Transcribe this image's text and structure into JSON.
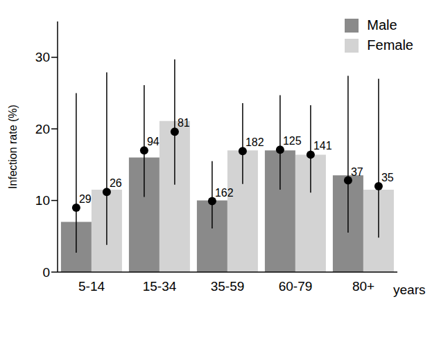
{
  "chart_data": {
    "type": "bar",
    "x_label": "years",
    "y_label": "Infection rate (%)",
    "categories": [
      "5-14",
      "15-34",
      "35-59",
      "60-79",
      "80+"
    ],
    "ylim": [
      0,
      35
    ],
    "yticks": [
      0,
      10,
      20,
      30
    ],
    "legend": "upper right",
    "series": [
      {
        "name": "Male",
        "color": "#8a8a8a",
        "values": [
          7,
          16,
          10,
          17,
          13.5
        ],
        "points": [
          9,
          17,
          9.9,
          17.1,
          12.8
        ],
        "error_low": [
          2.7,
          10.5,
          6.1,
          11.5,
          5.5
        ],
        "error_high": [
          25,
          26.1,
          15.5,
          24.7,
          27.4
        ],
        "n": [
          29,
          94,
          162,
          125,
          37
        ]
      },
      {
        "name": "Female",
        "color": "#d3d3d3",
        "values": [
          11.5,
          21.1,
          17,
          16.4,
          11.5
        ],
        "points": [
          11.2,
          19.6,
          16.9,
          16.4,
          12
        ],
        "error_low": [
          3.8,
          12.2,
          12.3,
          11.1,
          4.8
        ],
        "error_high": [
          27.9,
          29.7,
          23.6,
          23.3,
          27
        ],
        "n": [
          26,
          81,
          182,
          141,
          35
        ]
      }
    ]
  }
}
